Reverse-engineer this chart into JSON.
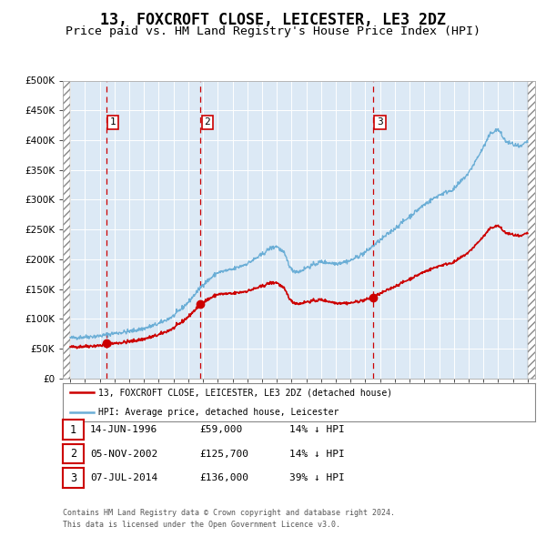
{
  "title": "13, FOXCROFT CLOSE, LEICESTER, LE3 2DZ",
  "subtitle": "Price paid vs. HM Land Registry's House Price Index (HPI)",
  "title_fontsize": 12,
  "subtitle_fontsize": 9.5,
  "legend_line1": "13, FOXCROFT CLOSE, LEICESTER, LE3 2DZ (detached house)",
  "legend_line2": "HPI: Average price, detached house, Leicester",
  "transactions": [
    {
      "num": 1,
      "date": "14-JUN-1996",
      "price": 59000,
      "price_str": "£59,000",
      "pct": "14%",
      "dir": "↓",
      "x_year": 1996.45
    },
    {
      "num": 2,
      "date": "05-NOV-2002",
      "price": 125700,
      "price_str": "£125,700",
      "pct": "14%",
      "dir": "↓",
      "x_year": 2002.84
    },
    {
      "num": 3,
      "date": "07-JUL-2014",
      "price": 136000,
      "price_str": "£136,000",
      "pct": "39%",
      "dir": "↓",
      "x_year": 2014.52
    }
  ],
  "footnote1": "Contains HM Land Registry data © Crown copyright and database right 2024.",
  "footnote2": "This data is licensed under the Open Government Licence v3.0.",
  "hpi_color": "#6baed6",
  "price_color": "#cc0000",
  "marker_color": "#cc0000",
  "dashed_color": "#cc0000",
  "background_color": "#dce9f5",
  "ylim": [
    0,
    500000
  ],
  "yticks": [
    0,
    50000,
    100000,
    150000,
    200000,
    250000,
    300000,
    350000,
    400000,
    450000,
    500000
  ],
  "xlim_start": 1993.5,
  "xlim_end": 2025.5,
  "hpi_anchors": [
    [
      1994.0,
      68000
    ],
    [
      1995.0,
      70000
    ],
    [
      1996.0,
      71500
    ],
    [
      1997.0,
      76000
    ],
    [
      1998.0,
      79000
    ],
    [
      1999.0,
      84000
    ],
    [
      2000.0,
      92000
    ],
    [
      2001.0,
      105000
    ],
    [
      2002.0,
      128000
    ],
    [
      2003.0,
      158000
    ],
    [
      2004.0,
      178000
    ],
    [
      2005.0,
      183000
    ],
    [
      2006.0,
      193000
    ],
    [
      2007.0,
      208000
    ],
    [
      2007.5,
      218000
    ],
    [
      2008.0,
      222000
    ],
    [
      2008.5,
      210000
    ],
    [
      2009.0,
      182000
    ],
    [
      2009.5,
      179000
    ],
    [
      2010.0,
      186000
    ],
    [
      2010.5,
      191000
    ],
    [
      2011.0,
      196000
    ],
    [
      2012.0,
      193000
    ],
    [
      2013.0,
      198000
    ],
    [
      2014.0,
      212000
    ],
    [
      2015.0,
      232000
    ],
    [
      2016.0,
      252000
    ],
    [
      2017.0,
      272000
    ],
    [
      2018.0,
      292000
    ],
    [
      2019.0,
      308000
    ],
    [
      2020.0,
      318000
    ],
    [
      2021.0,
      345000
    ],
    [
      2022.0,
      388000
    ],
    [
      2022.5,
      412000
    ],
    [
      2023.0,
      418000
    ],
    [
      2023.5,
      398000
    ],
    [
      2024.0,
      393000
    ],
    [
      2024.5,
      388000
    ],
    [
      2025.0,
      398000
    ]
  ]
}
